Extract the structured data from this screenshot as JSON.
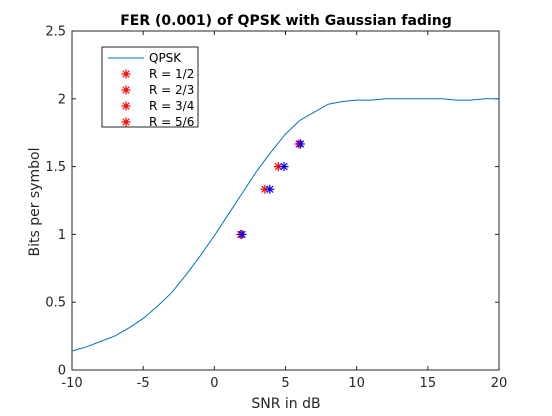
{
  "chart_data": {
    "type": "line",
    "title": "FER (0.001) of QPSK with Gaussian fading",
    "xlabel": "SNR in dB",
    "ylabel": "Bits per symbol",
    "xlim": [
      -10,
      20
    ],
    "ylim": [
      0,
      2.5
    ],
    "xticks": [
      -10,
      -5,
      0,
      5,
      10,
      15,
      20
    ],
    "yticks": [
      0,
      0.5,
      1,
      1.5,
      2,
      2.5
    ],
    "xtick_labels": [
      "-10",
      "-5",
      "0",
      "5",
      "10",
      "15",
      "20"
    ],
    "ytick_labels": [
      "0",
      "0.5",
      "1",
      "1.5",
      "2",
      "2.5"
    ],
    "grid": false,
    "legend_position": "top-left",
    "series": [
      {
        "name": "QPSK",
        "kind": "line",
        "color": "#0072BD",
        "x": [
          -10,
          -9,
          -8,
          -7,
          -6,
          -5,
          -4,
          -3,
          -2,
          -1,
          0,
          1,
          2,
          3,
          4,
          5,
          6,
          7,
          8,
          9,
          10,
          11,
          12,
          13,
          14,
          15,
          16,
          17,
          18,
          19,
          20
        ],
        "y": [
          0.14,
          0.17,
          0.21,
          0.25,
          0.31,
          0.38,
          0.47,
          0.57,
          0.7,
          0.84,
          0.99,
          1.15,
          1.31,
          1.47,
          1.61,
          1.74,
          1.84,
          1.9,
          1.96,
          1.98,
          1.99,
          1.99,
          2.0,
          2.0,
          2.0,
          2.0,
          2.0,
          1.99,
          1.99,
          2.0,
          2.0
        ]
      },
      {
        "name": "R = 1/2",
        "kind": "marker",
        "color": "#FF0000",
        "x": 1.85,
        "y": 1.0
      },
      {
        "name": "R = 2/3",
        "kind": "marker",
        "color": "#FF0000",
        "x": 3.55,
        "y": 1.333
      },
      {
        "name": "R = 3/4",
        "kind": "marker",
        "color": "#FF0000",
        "x": 4.5,
        "y": 1.5
      },
      {
        "name": "R = 5/6",
        "kind": "marker",
        "color": "#FF0000",
        "x": 5.95,
        "y": 1.667
      }
    ],
    "extra_markers": {
      "color": "#0000FF",
      "points": [
        {
          "x": 1.95,
          "y": 1.0
        },
        {
          "x": 3.9,
          "y": 1.333
        },
        {
          "x": 4.9,
          "y": 1.5
        },
        {
          "x": 6.05,
          "y": 1.667
        }
      ]
    }
  }
}
